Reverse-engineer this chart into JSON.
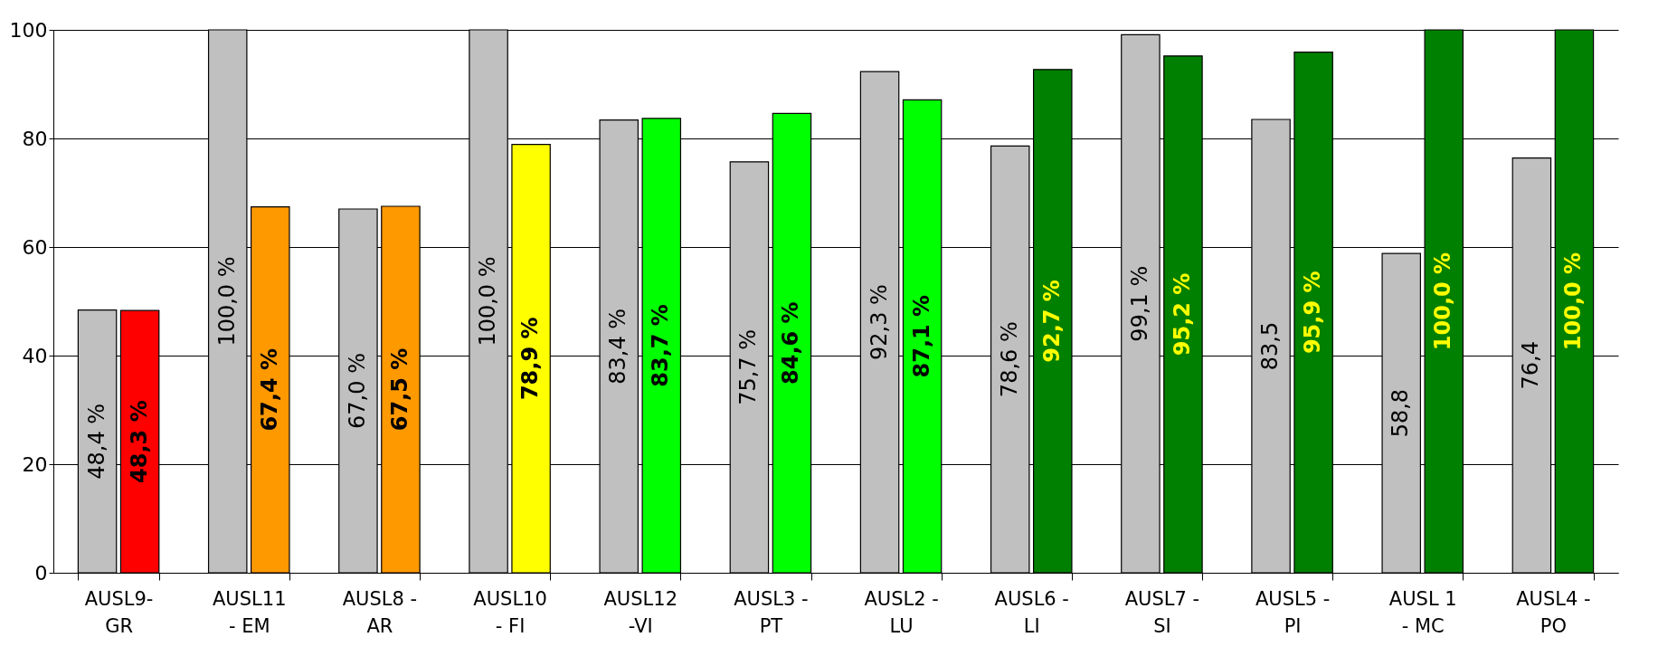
{
  "chart_data": {
    "type": "bar",
    "categories": [
      "AUSL9-GR",
      "AUSL11 - EM",
      "AUSL8 - AR",
      "AUSL10 - FI",
      "AUSL12 -VI",
      "AUSL3 - PT",
      "AUSL2 - LU",
      "AUSL6 - LI",
      "AUSL7 - SI",
      "AUSL5 - PI",
      "AUSL 1 - MC",
      "AUSL4 - PO"
    ],
    "series": [
      {
        "color": "#c0c0c0",
        "values": [
          48.4,
          100,
          67.0,
          100,
          83.4,
          75.7,
          92.3,
          78.6,
          99.1,
          83.5,
          58.8,
          76.4
        ],
        "value_labels": [
          "48,4 %",
          "100,0 %",
          "67,0 %",
          "100,0 %",
          "83,4 %",
          "75,7 %",
          "92,3 %",
          "78,6 %",
          "99,1 %",
          "83,5",
          "58,8",
          "76,4"
        ]
      },
      {
        "colors": [
          "#ff0000",
          "#ff9900",
          "#ff9900",
          "#ffff00",
          "#00ff00",
          "#00ff00",
          "#00ff00",
          "#008000",
          "#008000",
          "#008000",
          "#008000",
          "#008000"
        ],
        "values": [
          48.3,
          67.4,
          67.5,
          78.9,
          83.7,
          84.6,
          87.1,
          92.7,
          95.2,
          95.9,
          100,
          100
        ],
        "value_labels": [
          "48,3 %",
          "67,4 %",
          "67,5 %",
          "78,9 %",
          "83,7 %",
          "84,6 %",
          "87,1 %",
          "92,7 %",
          "95,2 %",
          "95,9 %",
          "100,0 %",
          "100,0 %"
        ]
      }
    ],
    "ylim": [
      0,
      100
    ],
    "yticks": [
      0,
      20,
      40,
      60,
      80,
      100
    ],
    "grid": "y"
  }
}
